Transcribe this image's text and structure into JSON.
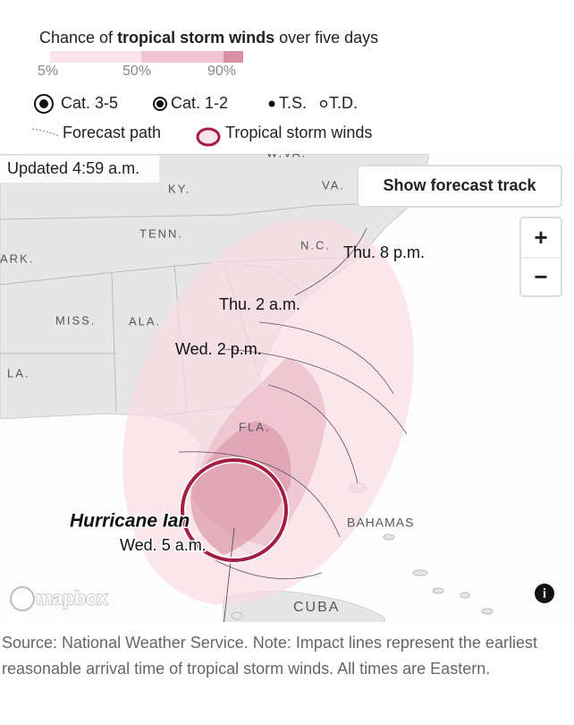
{
  "legend": {
    "title_prefix": "Chance of ",
    "title_bold": "tropical storm winds",
    "title_suffix": " over five days",
    "scale": [
      "5%",
      "50%",
      "90%"
    ],
    "categories": [
      "Cat. 3-5",
      "Cat. 1-2",
      "T.S.",
      "T.D."
    ],
    "lines": [
      "Forecast path",
      "Tropical storm winds"
    ]
  },
  "map": {
    "updated": "Updated 4:59 a.m.",
    "button": "Show forecast track",
    "zoom_in": "+",
    "zoom_out": "−",
    "places": [
      "W.VA.",
      "KY.",
      "VA.",
      "TENN.",
      "N.C.",
      "ARK.",
      "MISS.",
      "ALA.",
      "LA.",
      "FLA.",
      "BAHAMAS",
      "CUBA"
    ],
    "times": [
      "Thu. 8 p.m.",
      "Thu. 2 a.m.",
      "Wed. 2 p.m.",
      "Wed. 5 a.m."
    ],
    "storm": "Hurricane Ian",
    "attribution": "mapbox",
    "info": "i"
  },
  "source": "Source: National Weather Service. Note: Impact lines represent the earliest reasonable arrival time of tropical storm winds. All times are Eastern."
}
